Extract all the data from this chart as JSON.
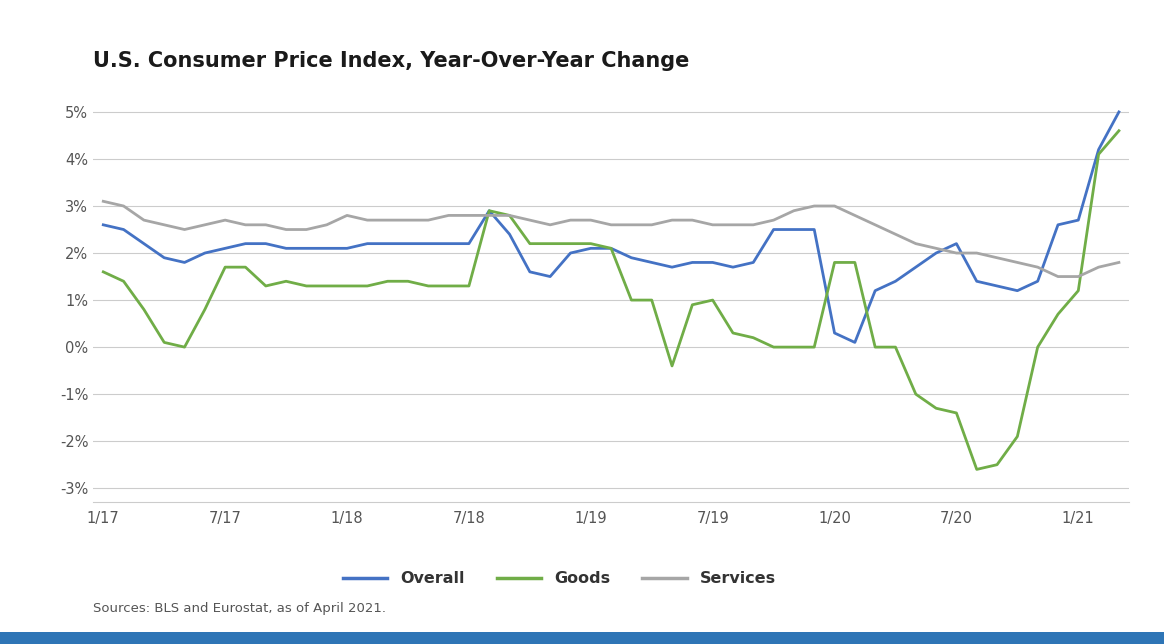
{
  "title": "U.S. Consumer Price Index, Year-Over-Year Change",
  "source_text": "Sources: BLS and Eurostat, as of April 2021.",
  "background_color": "#ffffff",
  "plot_bg": "#ffffff",
  "ylim": [
    -0.033,
    0.056
  ],
  "yticks": [
    -0.03,
    -0.02,
    -0.01,
    0.0,
    0.01,
    0.02,
    0.03,
    0.04,
    0.05
  ],
  "x_labels": [
    "1/17",
    "7/17",
    "1/18",
    "7/18",
    "1/19",
    "7/19",
    "1/20",
    "7/20",
    "1/21"
  ],
  "x_positions": [
    0,
    6,
    12,
    18,
    24,
    30,
    36,
    42,
    48
  ],
  "overall_color": "#4472c4",
  "goods_color": "#70ad47",
  "services_color": "#a6a6a6",
  "line_width": 2.0,
  "overall": [
    0.026,
    0.025,
    0.022,
    0.019,
    0.018,
    0.02,
    0.021,
    0.022,
    0.022,
    0.021,
    0.021,
    0.021,
    0.021,
    0.022,
    0.022,
    0.022,
    0.022,
    0.022,
    0.022,
    0.029,
    0.024,
    0.016,
    0.015,
    0.02,
    0.021,
    0.021,
    0.019,
    0.018,
    0.017,
    0.018,
    0.018,
    0.017,
    0.018,
    0.025,
    0.025,
    0.025,
    0.003,
    0.001,
    0.012,
    0.014,
    0.017,
    0.02,
    0.022,
    0.014,
    0.013,
    0.012,
    0.014,
    0.026,
    0.027,
    0.042,
    0.05
  ],
  "goods": [
    0.016,
    0.014,
    0.008,
    0.001,
    0.0,
    0.008,
    0.017,
    0.017,
    0.013,
    0.014,
    0.013,
    0.013,
    0.013,
    0.013,
    0.014,
    0.014,
    0.013,
    0.013,
    0.013,
    0.029,
    0.028,
    0.022,
    0.022,
    0.022,
    0.022,
    0.021,
    0.01,
    0.01,
    -0.004,
    0.009,
    0.01,
    0.003,
    0.002,
    0.0,
    0.0,
    0.0,
    0.018,
    0.018,
    0.0,
    0.0,
    -0.01,
    -0.013,
    -0.014,
    -0.026,
    -0.025,
    -0.019,
    0.0,
    0.007,
    0.012,
    0.041,
    0.046
  ],
  "services": [
    0.031,
    0.03,
    0.027,
    0.026,
    0.025,
    0.026,
    0.027,
    0.026,
    0.026,
    0.025,
    0.025,
    0.026,
    0.028,
    0.027,
    0.027,
    0.027,
    0.027,
    0.028,
    0.028,
    0.028,
    0.028,
    0.027,
    0.026,
    0.027,
    0.027,
    0.026,
    0.026,
    0.026,
    0.027,
    0.027,
    0.026,
    0.026,
    0.026,
    0.027,
    0.029,
    0.03,
    0.03,
    0.028,
    0.026,
    0.024,
    0.022,
    0.021,
    0.02,
    0.02,
    0.019,
    0.018,
    0.017,
    0.015,
    0.015,
    0.017,
    0.018
  ],
  "grid_color": "#cccccc",
  "tick_color": "#555555",
  "title_color": "#1a1a1a",
  "source_color": "#555555",
  "bottom_bar_color": "#2E75B6"
}
